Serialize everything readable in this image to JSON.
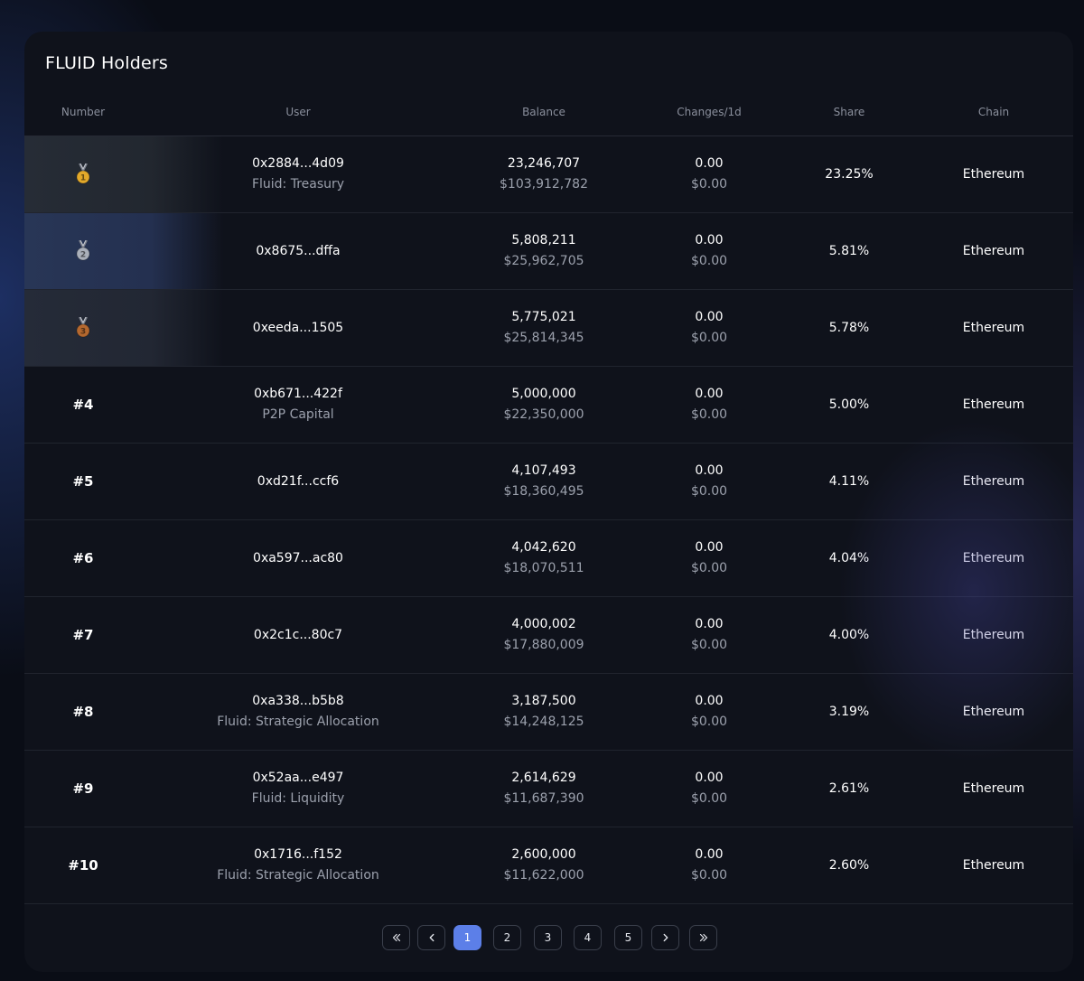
{
  "title": "FLUID Holders",
  "columns": {
    "number": "Number",
    "user": "User",
    "balance": "Balance",
    "changes": "Changes/1d",
    "share": "Share",
    "chain": "Chain"
  },
  "rows": [
    {
      "rank": "",
      "medal": "gold",
      "medal_num": "1",
      "address": "0x2884...4d09",
      "label": "Fluid: Treasury",
      "balance": "23,246,707",
      "balance_usd": "$103,912,782",
      "change": "0.00",
      "change_usd": "$0.00",
      "share": "23.25%",
      "chain": "Ethereum"
    },
    {
      "rank": "",
      "medal": "silver",
      "medal_num": "2",
      "address": "0x8675...dffa",
      "label": "",
      "balance": "5,808,211",
      "balance_usd": "$25,962,705",
      "change": "0.00",
      "change_usd": "$0.00",
      "share": "5.81%",
      "chain": "Ethereum"
    },
    {
      "rank": "",
      "medal": "bronze",
      "medal_num": "3",
      "address": "0xeeda...1505",
      "label": "",
      "balance": "5,775,021",
      "balance_usd": "$25,814,345",
      "change": "0.00",
      "change_usd": "$0.00",
      "share": "5.78%",
      "chain": "Ethereum"
    },
    {
      "rank": "#4",
      "medal": "",
      "medal_num": "",
      "address": "0xb671...422f",
      "label": "P2P Capital",
      "balance": "5,000,000",
      "balance_usd": "$22,350,000",
      "change": "0.00",
      "change_usd": "$0.00",
      "share": "5.00%",
      "chain": "Ethereum"
    },
    {
      "rank": "#5",
      "medal": "",
      "medal_num": "",
      "address": "0xd21f...ccf6",
      "label": "",
      "balance": "4,107,493",
      "balance_usd": "$18,360,495",
      "change": "0.00",
      "change_usd": "$0.00",
      "share": "4.11%",
      "chain": "Ethereum"
    },
    {
      "rank": "#6",
      "medal": "",
      "medal_num": "",
      "address": "0xa597...ac80",
      "label": "",
      "balance": "4,042,620",
      "balance_usd": "$18,070,511",
      "change": "0.00",
      "change_usd": "$0.00",
      "share": "4.04%",
      "chain": "Ethereum"
    },
    {
      "rank": "#7",
      "medal": "",
      "medal_num": "",
      "address": "0x2c1c...80c7",
      "label": "",
      "balance": "4,000,002",
      "balance_usd": "$17,880,009",
      "change": "0.00",
      "change_usd": "$0.00",
      "share": "4.00%",
      "chain": "Ethereum"
    },
    {
      "rank": "#8",
      "medal": "",
      "medal_num": "",
      "address": "0xa338...b5b8",
      "label": "Fluid: Strategic Allocation",
      "balance": "3,187,500",
      "balance_usd": "$14,248,125",
      "change": "0.00",
      "change_usd": "$0.00",
      "share": "3.19%",
      "chain": "Ethereum"
    },
    {
      "rank": "#9",
      "medal": "",
      "medal_num": "",
      "address": "0x52aa...e497",
      "label": "Fluid: Liquidity",
      "balance": "2,614,629",
      "balance_usd": "$11,687,390",
      "change": "0.00",
      "change_usd": "$0.00",
      "share": "2.61%",
      "chain": "Ethereum"
    },
    {
      "rank": "#10",
      "medal": "",
      "medal_num": "",
      "address": "0x1716...f152",
      "label": "Fluid: Strategic Allocation",
      "balance": "2,600,000",
      "balance_usd": "$11,622,000",
      "change": "0.00",
      "change_usd": "$0.00",
      "share": "2.60%",
      "chain": "Ethereum"
    }
  ],
  "pagination": {
    "first_icon": "double-chevron-left-icon",
    "prev_icon": "chevron-left-icon",
    "pages": [
      "1",
      "2",
      "3",
      "4",
      "5"
    ],
    "current": "1",
    "next_icon": "chevron-right-icon",
    "last_icon": "double-chevron-right-icon"
  },
  "colors": {
    "accent": "#5c7fe8",
    "gold": "#e3a92a",
    "silver": "#aab0ba",
    "bronze": "#b4682f"
  }
}
